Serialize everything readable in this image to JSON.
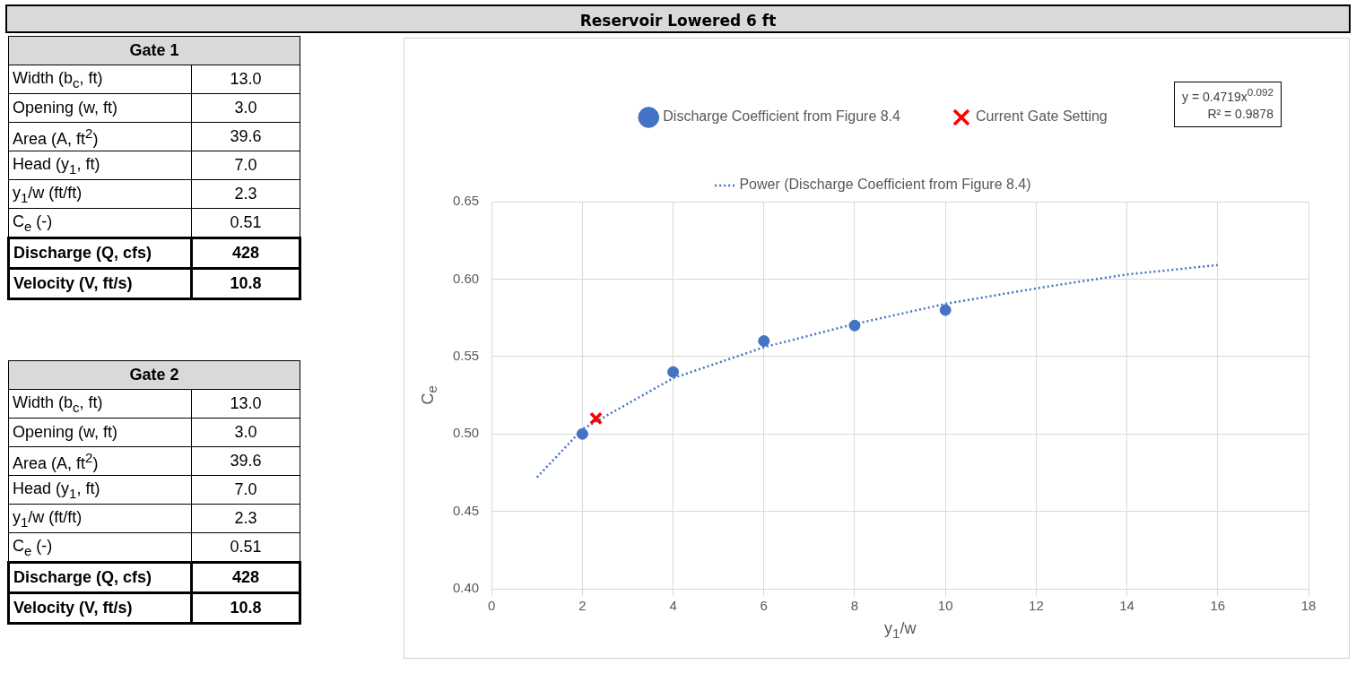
{
  "chart_data": [
    {
      "type": "other",
      "title": "Gate 1",
      "annotations": [
        "Width (b$_{c}$, ft)",
        "13.0",
        "Opening (w, ft)",
        "3.0",
        "Area (A, ft$^{2}$)",
        "39.6",
        "Head (y$_{1}$, ft)",
        "7.0",
        "y$_{1}$/w (ft/ft)",
        "2.3",
        "C$_{e}$ (-)",
        "0.51",
        "Discharge (Q, cfs)",
        "428",
        "Velocity (V, ft/s)",
        "10.8"
      ]
    },
    {
      "type": "other",
      "title": "Gate 2",
      "annotations": [
        "Width (b$_{c}$, ft)",
        "13.0",
        "Opening (w, ft)",
        "3.0",
        "Area (A, ft$^{2}$)",
        "39.6",
        "Head (y$_{1}$, ft)",
        "7.0",
        "y$_{1}$/w (ft/ft)",
        "2.3",
        "C$_{e}$ (-)",
        "0.51",
        "Discharge (Q, cfs)",
        "428",
        "Velocity (V, ft/s)",
        "10.8"
      ]
    },
    {
      "type": "scatter",
      "title": "Reservoir Lowered 6 ft",
      "xlabel": "y$_{1}$/w",
      "ylabel": "C$_{e}$",
      "xlim": [
        0,
        18
      ],
      "xticks": [
        0,
        2,
        4,
        6,
        8,
        10,
        12,
        14,
        16,
        18
      ],
      "ylim": [
        0.4,
        0.65
      ],
      "yticks": [
        {
          "value": 0.4,
          "label": "0.40"
        },
        0.45,
        {
          "value": 0.5,
          "label": "0.50"
        },
        0.55,
        {
          "value": 0.6,
          "label": "0.60"
        },
        0.65
      ],
      "grid": true,
      "legend": "top",
      "annotations": [
        "y = 0.4719x$^{0.092}$",
        "R² = 0.9878"
      ],
      "series": [
        {
          "name": "Discharge Coefficient from Figure 8.4",
          "color": "#4472c4",
          "marker": "circle",
          "x": [
            2,
            4,
            6,
            8,
            10
          ],
          "values": [
            0.5,
            0.54,
            0.56,
            0.57,
            0.58
          ]
        },
        {
          "name": "Current Gate Setting",
          "color": "#ff0000",
          "marker": "cross",
          "x": [
            2.3
          ],
          "values": [
            0.51
          ]
        },
        {
          "name": "Power (Discharge Coefficient from Figure 8.4)",
          "type": "line",
          "color": "#4472c4",
          "marker": "none",
          "line_style": "dotted",
          "x": [
            1,
            2,
            4,
            6,
            8,
            10,
            12,
            14,
            16
          ],
          "values": [
            0.472,
            0.503,
            0.536,
            0.556,
            0.571,
            0.584,
            0.594,
            0.603,
            0.609
          ]
        }
      ]
    }
  ]
}
